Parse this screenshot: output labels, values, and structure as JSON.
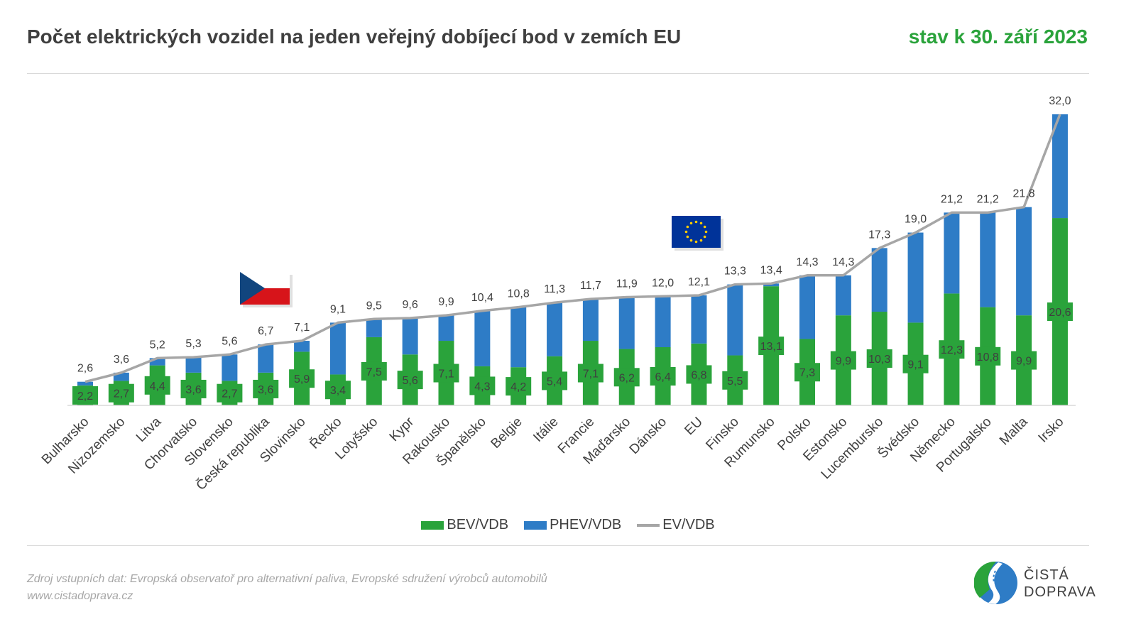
{
  "header": {
    "title": "Počet elektrických vozidel na jeden veřejný dobíjecí bod v zemích EU",
    "date": "stav k 30. září 2023"
  },
  "chart_data": {
    "type": "bar",
    "stacked": true,
    "title": "Počet elektrických vozidel na jeden veřejný dobíjecí bod v zemích EU",
    "categories": [
      "Bulharsko",
      "Nizozemsko",
      "Litva",
      "Chorvatsko",
      "Slovensko",
      "Česká republika",
      "Slovinsko",
      "Řecko",
      "Lotyšsko",
      "Kypr",
      "Rakousko",
      "Španělsko",
      "Belgie",
      "Itálie",
      "Francie",
      "Maďarsko",
      "Dánsko",
      "EU",
      "Finsko",
      "Rumunsko",
      "Polsko",
      "Estonsko",
      "Lucembursko",
      "Švédsko",
      "Německo",
      "Portugalsko",
      "Malta",
      "Irsko"
    ],
    "series": [
      {
        "name": "BEV/VDB",
        "type": "bar",
        "color": "#2aa33b",
        "values": [
          2.2,
          2.7,
          4.4,
          3.6,
          2.7,
          3.6,
          5.9,
          3.4,
          7.5,
          5.6,
          7.1,
          4.3,
          4.2,
          5.4,
          7.1,
          6.2,
          6.4,
          6.8,
          5.5,
          13.1,
          7.3,
          9.9,
          10.3,
          9.1,
          12.3,
          10.8,
          9.9,
          20.6
        ],
        "labels": [
          "2,2",
          "2,7",
          "4,4",
          "3,6",
          "2,7",
          "3,6",
          "5,9",
          "3,4",
          "7,5",
          "5,6",
          "7,1",
          "4,3",
          "4,2",
          "5,4",
          "7,1",
          "6,2",
          "6,4",
          "6,8",
          "5,5",
          "13,1",
          "7,3",
          "9,9",
          "10,3",
          "9,1",
          "12,3",
          "10,8",
          "9,9",
          "20,6"
        ]
      },
      {
        "name": "PHEV/VDB",
        "type": "bar",
        "color": "#2e7cc6",
        "values": [
          0.4,
          0.9,
          0.8,
          1.7,
          2.9,
          3.1,
          1.2,
          5.7,
          2.0,
          4.0,
          2.8,
          6.1,
          6.6,
          5.9,
          4.6,
          5.7,
          5.6,
          5.3,
          7.8,
          0.3,
          7.0,
          4.4,
          7.0,
          9.9,
          8.9,
          10.4,
          11.9,
          11.4
        ]
      },
      {
        "name": "EV/VDB",
        "type": "line",
        "color": "#a6a6a6",
        "values": [
          2.6,
          3.6,
          5.2,
          5.3,
          5.6,
          6.7,
          7.1,
          9.1,
          9.5,
          9.6,
          9.9,
          10.4,
          10.8,
          11.3,
          11.7,
          11.9,
          12.0,
          12.1,
          13.3,
          13.4,
          14.3,
          14.3,
          17.3,
          19.0,
          21.2,
          21.2,
          21.8,
          32.0
        ],
        "labels": [
          "2,6",
          "3,6",
          "5,2",
          "5,3",
          "5,6",
          "6,7",
          "7,1",
          "9,1",
          "9,5",
          "9,6",
          "9,9",
          "10,4",
          "10,8",
          "11,3",
          "11,7",
          "11,9",
          "12,0",
          "12,1",
          "13,3",
          "13,4",
          "14,3",
          "14,3",
          "17,3",
          "19,0",
          "21,2",
          "21,2",
          "21,8",
          "32,0"
        ]
      }
    ],
    "ylim": [
      0,
      32
    ],
    "grid": false,
    "legend_position": "bottom",
    "annotations": [
      {
        "type": "flag",
        "icon": "czech-flag-icon",
        "category": "Česká republika"
      },
      {
        "type": "flag",
        "icon": "eu-flag-icon",
        "category": "EU"
      }
    ]
  },
  "legend": {
    "items": [
      {
        "label": "BEV/VDB",
        "color": "#2aa33b",
        "kind": "box"
      },
      {
        "label": "PHEV/VDB",
        "color": "#2e7cc6",
        "kind": "box"
      },
      {
        "label": "EV/VDB",
        "color": "#a6a6a6",
        "kind": "line"
      }
    ]
  },
  "footer": {
    "source": "Zdroj vstupních dat: Evropská observatoř pro alternativní paliva, Evropské sdružení výrobců automobilů",
    "url": "www.cistadoprava.cz",
    "logo_line1": "ČISTÁ",
    "logo_line2": "DOPRAVA"
  }
}
